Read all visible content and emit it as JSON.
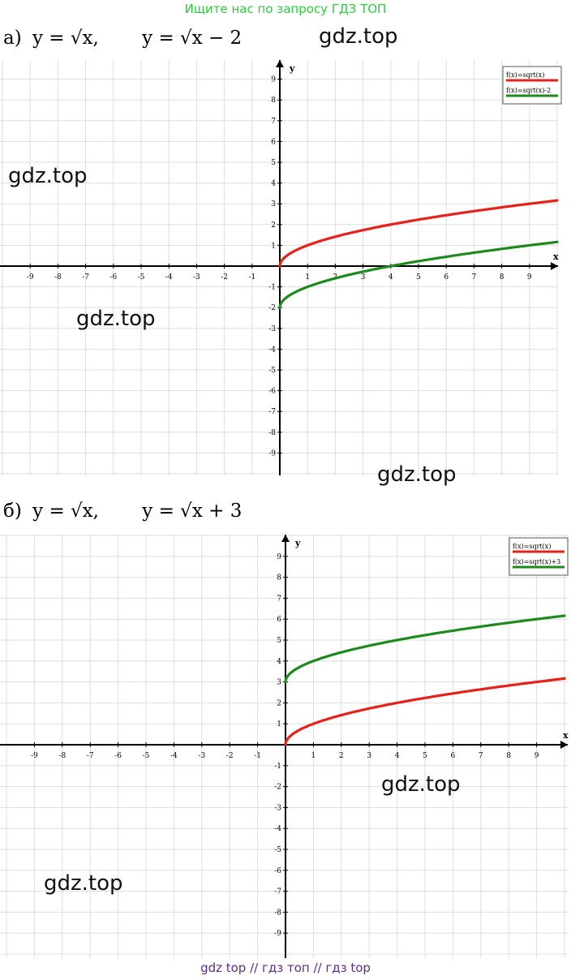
{
  "banner": "Ищите нас по запросу ГДЗ ТОП",
  "footer": "gdz top  //  гдз топ  //  гдз top",
  "watermark": "gdz.top",
  "part_a": {
    "marker": "а)",
    "eq1": "y = √x,",
    "eq2": "y = √x − 2"
  },
  "part_b": {
    "marker": "б)",
    "eq1": "y = √x,",
    "eq2": "y = √x + 3"
  },
  "colors": {
    "red": "#e8201a",
    "green": "#1e8a1e",
    "grid": "#dddddd"
  },
  "chart_data": [
    {
      "type": "line",
      "xlabel": "x",
      "ylabel": "y",
      "xlim": [
        -10,
        10
      ],
      "ylim": [
        -10,
        10
      ],
      "x_ticks": [
        -9,
        -8,
        -7,
        -6,
        -5,
        -4,
        -3,
        -2,
        -1,
        1,
        2,
        3,
        4,
        5,
        6,
        7,
        8,
        9
      ],
      "y_ticks": [
        9,
        8,
        7,
        6,
        5,
        4,
        3,
        2,
        1,
        -1,
        -2,
        -3,
        -4,
        -5,
        -6,
        -7,
        -8,
        -9
      ],
      "grid": true,
      "legend_position": "top-right",
      "series": [
        {
          "name": "f(x)=sqrt(x)",
          "color": "#e8201a",
          "x": [
            0,
            0.25,
            1,
            2,
            4,
            6,
            9,
            10
          ],
          "y": [
            0,
            0.5,
            1,
            1.414,
            2,
            2.449,
            3,
            3.162
          ]
        },
        {
          "name": "f(x)=sqrt(x)-2",
          "color": "#1e8a1e",
          "x": [
            0,
            0.25,
            1,
            2,
            4,
            6,
            9,
            10
          ],
          "y": [
            -2,
            -1.5,
            -1,
            -0.586,
            0,
            0.449,
            1,
            1.162
          ]
        }
      ]
    },
    {
      "type": "line",
      "xlabel": "x",
      "ylabel": "y",
      "xlim": [
        -10,
        10
      ],
      "ylim": [
        -10,
        10
      ],
      "x_ticks": [
        -9,
        -8,
        -7,
        -6,
        -5,
        -4,
        -3,
        -2,
        -1,
        1,
        2,
        3,
        4,
        5,
        6,
        7,
        8,
        9
      ],
      "y_ticks": [
        9,
        8,
        7,
        6,
        5,
        4,
        3,
        2,
        1,
        -1,
        -2,
        -3,
        -4,
        -5,
        -6,
        -7,
        -8,
        -9
      ],
      "grid": true,
      "legend_position": "top-right",
      "series": [
        {
          "name": "f(x)=sqrt(x)",
          "color": "#e8201a",
          "x": [
            0,
            0.25,
            1,
            2,
            4,
            6,
            9,
            10
          ],
          "y": [
            0,
            0.5,
            1,
            1.414,
            2,
            2.449,
            3,
            3.162
          ]
        },
        {
          "name": "f(x)=sqrt(x)+3",
          "color": "#1e8a1e",
          "x": [
            0,
            0.25,
            1,
            2,
            4,
            6,
            9,
            10
          ],
          "y": [
            3,
            3.5,
            4,
            4.414,
            5,
            5.449,
            6,
            6.162
          ]
        }
      ]
    }
  ]
}
